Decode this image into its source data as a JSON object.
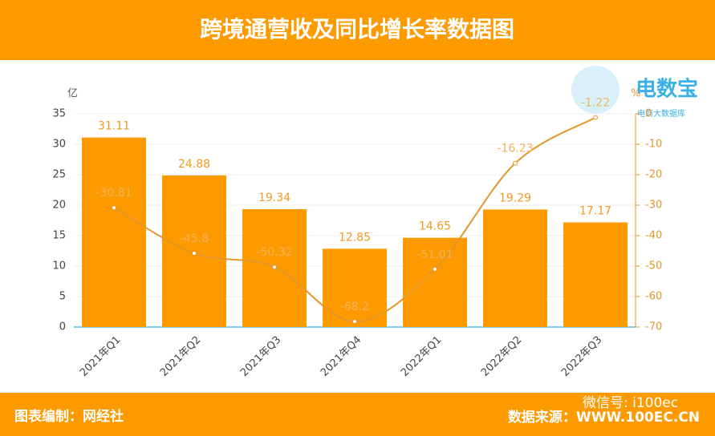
{
  "chart_data": {
    "type": "bar",
    "title": "跨境通营收及同比增长率数据图",
    "categories": [
      "2021年Q1",
      "2021年Q2",
      "2021年Q3",
      "2021年Q4",
      "2022年Q1",
      "2022年Q2",
      "2022年Q3"
    ],
    "series": [
      {
        "color": "#fd9a00",
        "values": [
          31.11,
          24.88,
          19.34,
          12.85,
          14.65,
          19.29,
          17.17
        ]
      },
      {
        "type": "line",
        "axis": "y2",
        "color": "#e3962a",
        "values": [
          -30.81,
          -45.8,
          -50.32,
          -68.2,
          -51.01,
          -16.23,
          -1.22
        ]
      }
    ],
    "ylim": [
      0,
      35
    ],
    "yticks": [
      0,
      5,
      10,
      15,
      20,
      25,
      30,
      35
    ],
    "y2lim": [
      -70,
      0
    ],
    "y2ticks": [
      0,
      -10,
      -20,
      -30,
      -40,
      -50,
      -60,
      -70
    ],
    "y_label": "亿",
    "y2_label": "%",
    "grid": true
  },
  "logo": {
    "title": "电数宝",
    "subtitle": "电商大数据库"
  },
  "footer": {
    "left": "图表编制：网经社",
    "watermark": "微信号: i100ec",
    "right": "数据来源：WWW.100EC.CN"
  }
}
